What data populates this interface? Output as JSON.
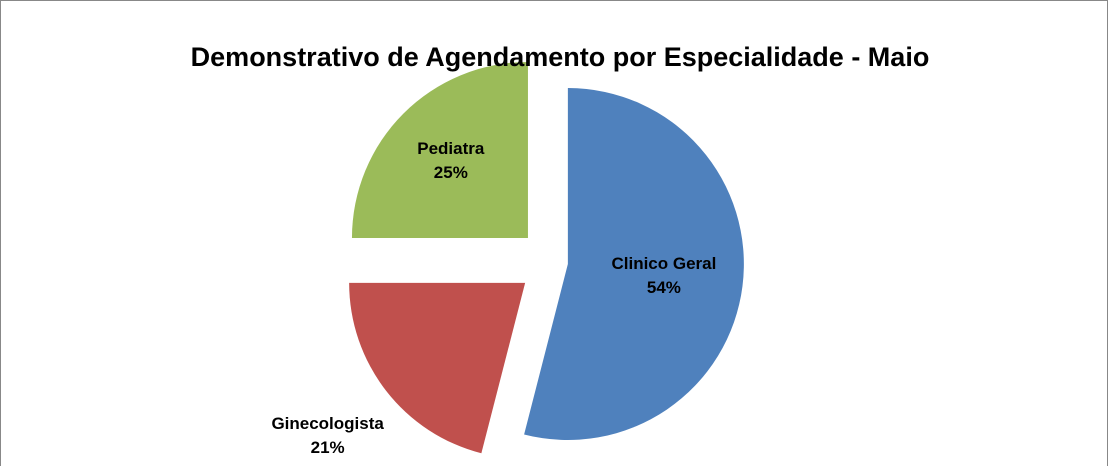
{
  "chart_data": {
    "type": "pie",
    "title": "Demonstrativo de Agendamento por Especialidade - Maio",
    "categories": [
      "Clinico Geral",
      "Ginecologista",
      "Pediatra"
    ],
    "values": [
      54,
      21,
      25
    ],
    "value_labels": [
      "54%",
      "21%",
      "25%"
    ],
    "colors": [
      "#4f81bd",
      "#c0504d",
      "#9bbb59"
    ]
  }
}
